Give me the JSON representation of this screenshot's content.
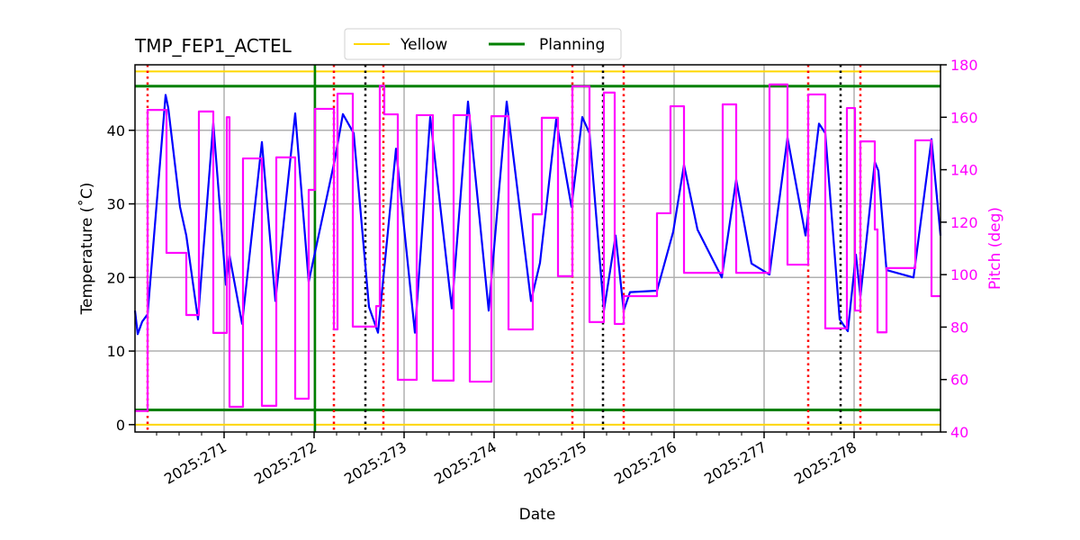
{
  "chart_data": {
    "type": "line",
    "title": "TMP_FEP1_ACTEL",
    "xlabel": "Date",
    "ylabel": "Temperature ($^\\circ$C)",
    "ylabel_display": "Temperature (˚C)",
    "y2label": "Pitch (deg)",
    "xlim": [
      270.01,
      278.96
    ],
    "ylim": [
      -1,
      48.9
    ],
    "y2lim": [
      40,
      180
    ],
    "x_ticks": [
      271,
      272,
      273,
      274,
      275,
      276,
      277,
      278
    ],
    "x_tick_labels": [
      "2025:271",
      "2025:272",
      "2025:273",
      "2025:274",
      "2025:275",
      "2025:276",
      "2025:277",
      "2025:278"
    ],
    "y_ticks": [
      0,
      10,
      20,
      30,
      40
    ],
    "y2_ticks": [
      40,
      60,
      80,
      100,
      120,
      140,
      160,
      180
    ],
    "grid": true,
    "legend": {
      "placement": "top-center",
      "entries": [
        {
          "name": "Yellow",
          "color": "#ffd700"
        },
        {
          "name": "Planning",
          "color": "#008000"
        }
      ]
    },
    "limits": {
      "yellow": {
        "values": [
          0,
          48
        ],
        "color": "#ffd700"
      },
      "planning": {
        "values": [
          2,
          46
        ],
        "color": "#008000"
      }
    },
    "vertical_lines": {
      "red_dotted": [
        270.15,
        272.22,
        272.77,
        274.87,
        275.44,
        277.49,
        278.07
      ],
      "black_dotted": [
        272.57,
        275.21,
        277.85
      ],
      "green_solid": [
        272.01
      ]
    },
    "colors": {
      "temperature": "#0000ff",
      "pitch": "#ff00ff",
      "red": "#ff0000",
      "black": "#000000",
      "grid": "#b0b0b0"
    },
    "series": [
      {
        "key": "temperature",
        "axis": "left",
        "color": "#0000ff",
        "points": [
          [
            270.01,
            15.5
          ],
          [
            270.04,
            12.3
          ],
          [
            270.09,
            14
          ],
          [
            270.15,
            15
          ],
          [
            270.35,
            44.8
          ],
          [
            270.38,
            43
          ],
          [
            270.51,
            29.6
          ],
          [
            270.58,
            25.7
          ],
          [
            270.71,
            14.3
          ],
          [
            270.88,
            41
          ],
          [
            271.02,
            19
          ],
          [
            271.06,
            23
          ],
          [
            271.2,
            13.7
          ],
          [
            271.42,
            38.4
          ],
          [
            271.57,
            16.8
          ],
          [
            271.79,
            42.3
          ],
          [
            271.94,
            19.4
          ],
          [
            272.23,
            36
          ],
          [
            272.32,
            42.2
          ],
          [
            272.44,
            39.6
          ],
          [
            272.61,
            16
          ],
          [
            272.71,
            12.5
          ],
          [
            272.91,
            37.5
          ],
          [
            273.12,
            12.5
          ],
          [
            273.29,
            41.8
          ],
          [
            273.53,
            15.8
          ],
          [
            273.71,
            43.9
          ],
          [
            273.94,
            15.5
          ],
          [
            274.14,
            43.9
          ],
          [
            274.41,
            16.8
          ],
          [
            274.51,
            22
          ],
          [
            274.69,
            41.5
          ],
          [
            274.86,
            29.6
          ],
          [
            274.98,
            41.8
          ],
          [
            275.06,
            39.6
          ],
          [
            275.22,
            15.5
          ],
          [
            275.35,
            25.7
          ],
          [
            275.44,
            15.5
          ],
          [
            275.51,
            18
          ],
          [
            275.81,
            18.2
          ],
          [
            275.99,
            26.2
          ],
          [
            276.11,
            35.3
          ],
          [
            276.26,
            26.5
          ],
          [
            276.53,
            20
          ],
          [
            276.69,
            33.3
          ],
          [
            276.86,
            21.9
          ],
          [
            277.06,
            20.4
          ],
          [
            277.26,
            39
          ],
          [
            277.46,
            25.7
          ],
          [
            277.61,
            40.9
          ],
          [
            277.68,
            39.6
          ],
          [
            277.84,
            14.3
          ],
          [
            277.93,
            12.7
          ],
          [
            278.02,
            23.1
          ],
          [
            278.07,
            17.4
          ],
          [
            278.23,
            35.7
          ],
          [
            278.27,
            34.5
          ],
          [
            278.36,
            21
          ],
          [
            278.66,
            20
          ],
          [
            278.86,
            38.8
          ],
          [
            278.96,
            25.7
          ]
        ]
      },
      {
        "key": "pitch",
        "axis": "right",
        "color": "#ff00ff",
        "drawstyle": "steps-post",
        "points": [
          [
            270.01,
            48
          ],
          [
            270.15,
            162.8
          ],
          [
            270.36,
            108.3
          ],
          [
            270.58,
            84.6
          ],
          [
            270.72,
            162.2
          ],
          [
            270.88,
            77.8
          ],
          [
            271.03,
            160
          ],
          [
            271.06,
            49.6
          ],
          [
            271.21,
            144.3
          ],
          [
            271.42,
            50
          ],
          [
            271.58,
            144.7
          ],
          [
            271.79,
            52.7
          ],
          [
            271.94,
            132.3
          ],
          [
            272.01,
            163.2
          ],
          [
            272.22,
            79.1
          ],
          [
            272.26,
            169
          ],
          [
            272.43,
            80.2
          ],
          [
            272.69,
            88
          ],
          [
            272.73,
            172
          ],
          [
            272.78,
            161.1
          ],
          [
            272.93,
            59.9
          ],
          [
            273.14,
            160.8
          ],
          [
            273.32,
            59.6
          ],
          [
            273.55,
            160.8
          ],
          [
            273.73,
            59.2
          ],
          [
            273.97,
            160.4
          ],
          [
            274.16,
            79.1
          ],
          [
            274.43,
            123
          ],
          [
            274.53,
            159.8
          ],
          [
            274.71,
            99.4
          ],
          [
            274.87,
            171.8
          ],
          [
            275.06,
            81.9
          ],
          [
            275.22,
            169.4
          ],
          [
            275.34,
            81.2
          ],
          [
            275.44,
            91.8
          ],
          [
            275.81,
            123.4
          ],
          [
            275.96,
            164.2
          ],
          [
            276.11,
            100.7
          ],
          [
            276.54,
            164.9
          ],
          [
            276.69,
            100.7
          ],
          [
            277.06,
            172.5
          ],
          [
            277.26,
            103.8
          ],
          [
            277.49,
            168.7
          ],
          [
            277.68,
            79.5
          ],
          [
            277.92,
            163.5
          ],
          [
            278.01,
            86.3
          ],
          [
            278.07,
            150.8
          ],
          [
            278.23,
            117.2
          ],
          [
            278.26,
            78
          ],
          [
            278.36,
            102.5
          ],
          [
            278.68,
            151.2
          ],
          [
            278.86,
            91.8
          ],
          [
            278.96,
            91.8
          ]
        ]
      }
    ]
  }
}
